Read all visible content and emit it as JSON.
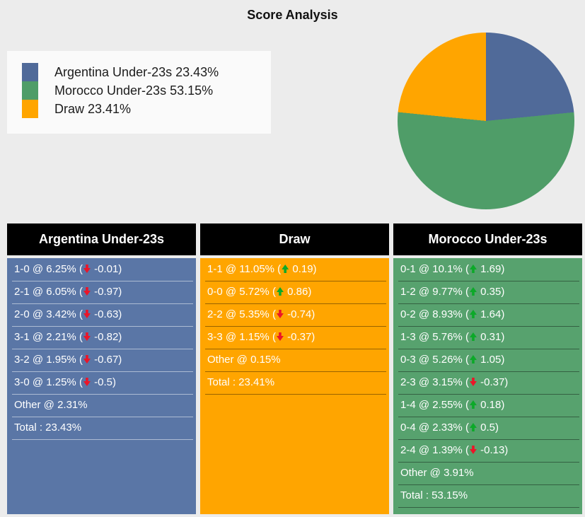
{
  "page": {
    "title": "Score Analysis",
    "background": "#ECECEC"
  },
  "legend": {
    "background": "#FAFAFA",
    "items": [
      {
        "label": "Argentina Under-23s 23.43%",
        "color": "#506A99"
      },
      {
        "label": "Morocco Under-23s 53.15%",
        "color": "#4F9D68"
      },
      {
        "label": "Draw 23.41%",
        "color": "#FFA500"
      }
    ]
  },
  "chart_data": {
    "type": "pie",
    "title": "Score Analysis",
    "unit": "%",
    "direction": "clockwise",
    "start_angle": "top",
    "legend_position": "left",
    "slices": [
      {
        "label": "Argentina Under-23s",
        "value": 23.43,
        "color": "#506A99"
      },
      {
        "label": "Morocco Under-23s",
        "value": 53.15,
        "color": "#4F9D68"
      },
      {
        "label": "Draw",
        "value": 23.41,
        "color": "#FFA500"
      }
    ]
  },
  "icons": {
    "trend_up_color": "#0CA929",
    "trend_down_color": "#EC1528"
  },
  "tables": [
    {
      "id": "argentina",
      "header": "Argentina Under-23s",
      "body_color": "#5A76A6",
      "separator_color": "rgba(255,255,255,0.5)",
      "rows": [
        {
          "label": "1-0 @ 6.25%",
          "trend": "down",
          "delta": "-0.01"
        },
        {
          "label": "2-1 @ 6.05%",
          "trend": "down",
          "delta": "-0.97"
        },
        {
          "label": "2-0 @ 3.42%",
          "trend": "down",
          "delta": "-0.63"
        },
        {
          "label": "3-1 @ 2.21%",
          "trend": "down",
          "delta": "-0.82"
        },
        {
          "label": "3-2 @ 1.95%",
          "trend": "down",
          "delta": "-0.67"
        },
        {
          "label": "3-0 @ 1.25%",
          "trend": "down",
          "delta": "-0.5"
        },
        {
          "label": "Other @ 2.31%"
        },
        {
          "label": "Total : 23.43%"
        }
      ]
    },
    {
      "id": "draw",
      "header": "Draw",
      "body_color": "#FFA500",
      "separator_color": "rgba(0,0,0,0.4)",
      "rows": [
        {
          "label": "1-1 @ 11.05%",
          "trend": "up",
          "delta": "0.19"
        },
        {
          "label": "0-0 @ 5.72%",
          "trend": "up",
          "delta": "0.86"
        },
        {
          "label": "2-2 @ 5.35%",
          "trend": "down",
          "delta": "-0.74"
        },
        {
          "label": "3-3 @ 1.15%",
          "trend": "down",
          "delta": "-0.37"
        },
        {
          "label": "Other @ 0.15%"
        },
        {
          "label": "Total : 23.41%"
        }
      ]
    },
    {
      "id": "morocco",
      "header": "Morocco Under-23s",
      "body_color": "#57A26E",
      "separator_color": "rgba(0,0,0,0.4)",
      "rows": [
        {
          "label": "0-1 @ 10.1%",
          "trend": "up",
          "delta": "1.69"
        },
        {
          "label": "1-2 @ 9.77%",
          "trend": "up",
          "delta": "0.35"
        },
        {
          "label": "0-2 @ 8.93%",
          "trend": "up",
          "delta": "1.64"
        },
        {
          "label": "1-3 @ 5.76%",
          "trend": "up",
          "delta": "0.31"
        },
        {
          "label": "0-3 @ 5.26%",
          "trend": "up",
          "delta": "1.05"
        },
        {
          "label": "2-3 @ 3.15%",
          "trend": "down",
          "delta": "-0.37"
        },
        {
          "label": "1-4 @ 2.55%",
          "trend": "up",
          "delta": "0.18"
        },
        {
          "label": "0-4 @ 2.33%",
          "trend": "up",
          "delta": "0.5"
        },
        {
          "label": "2-4 @ 1.39%",
          "trend": "down",
          "delta": "-0.13"
        },
        {
          "label": "Other @ 3.91%"
        },
        {
          "label": "Total : 53.15%"
        }
      ]
    }
  ]
}
